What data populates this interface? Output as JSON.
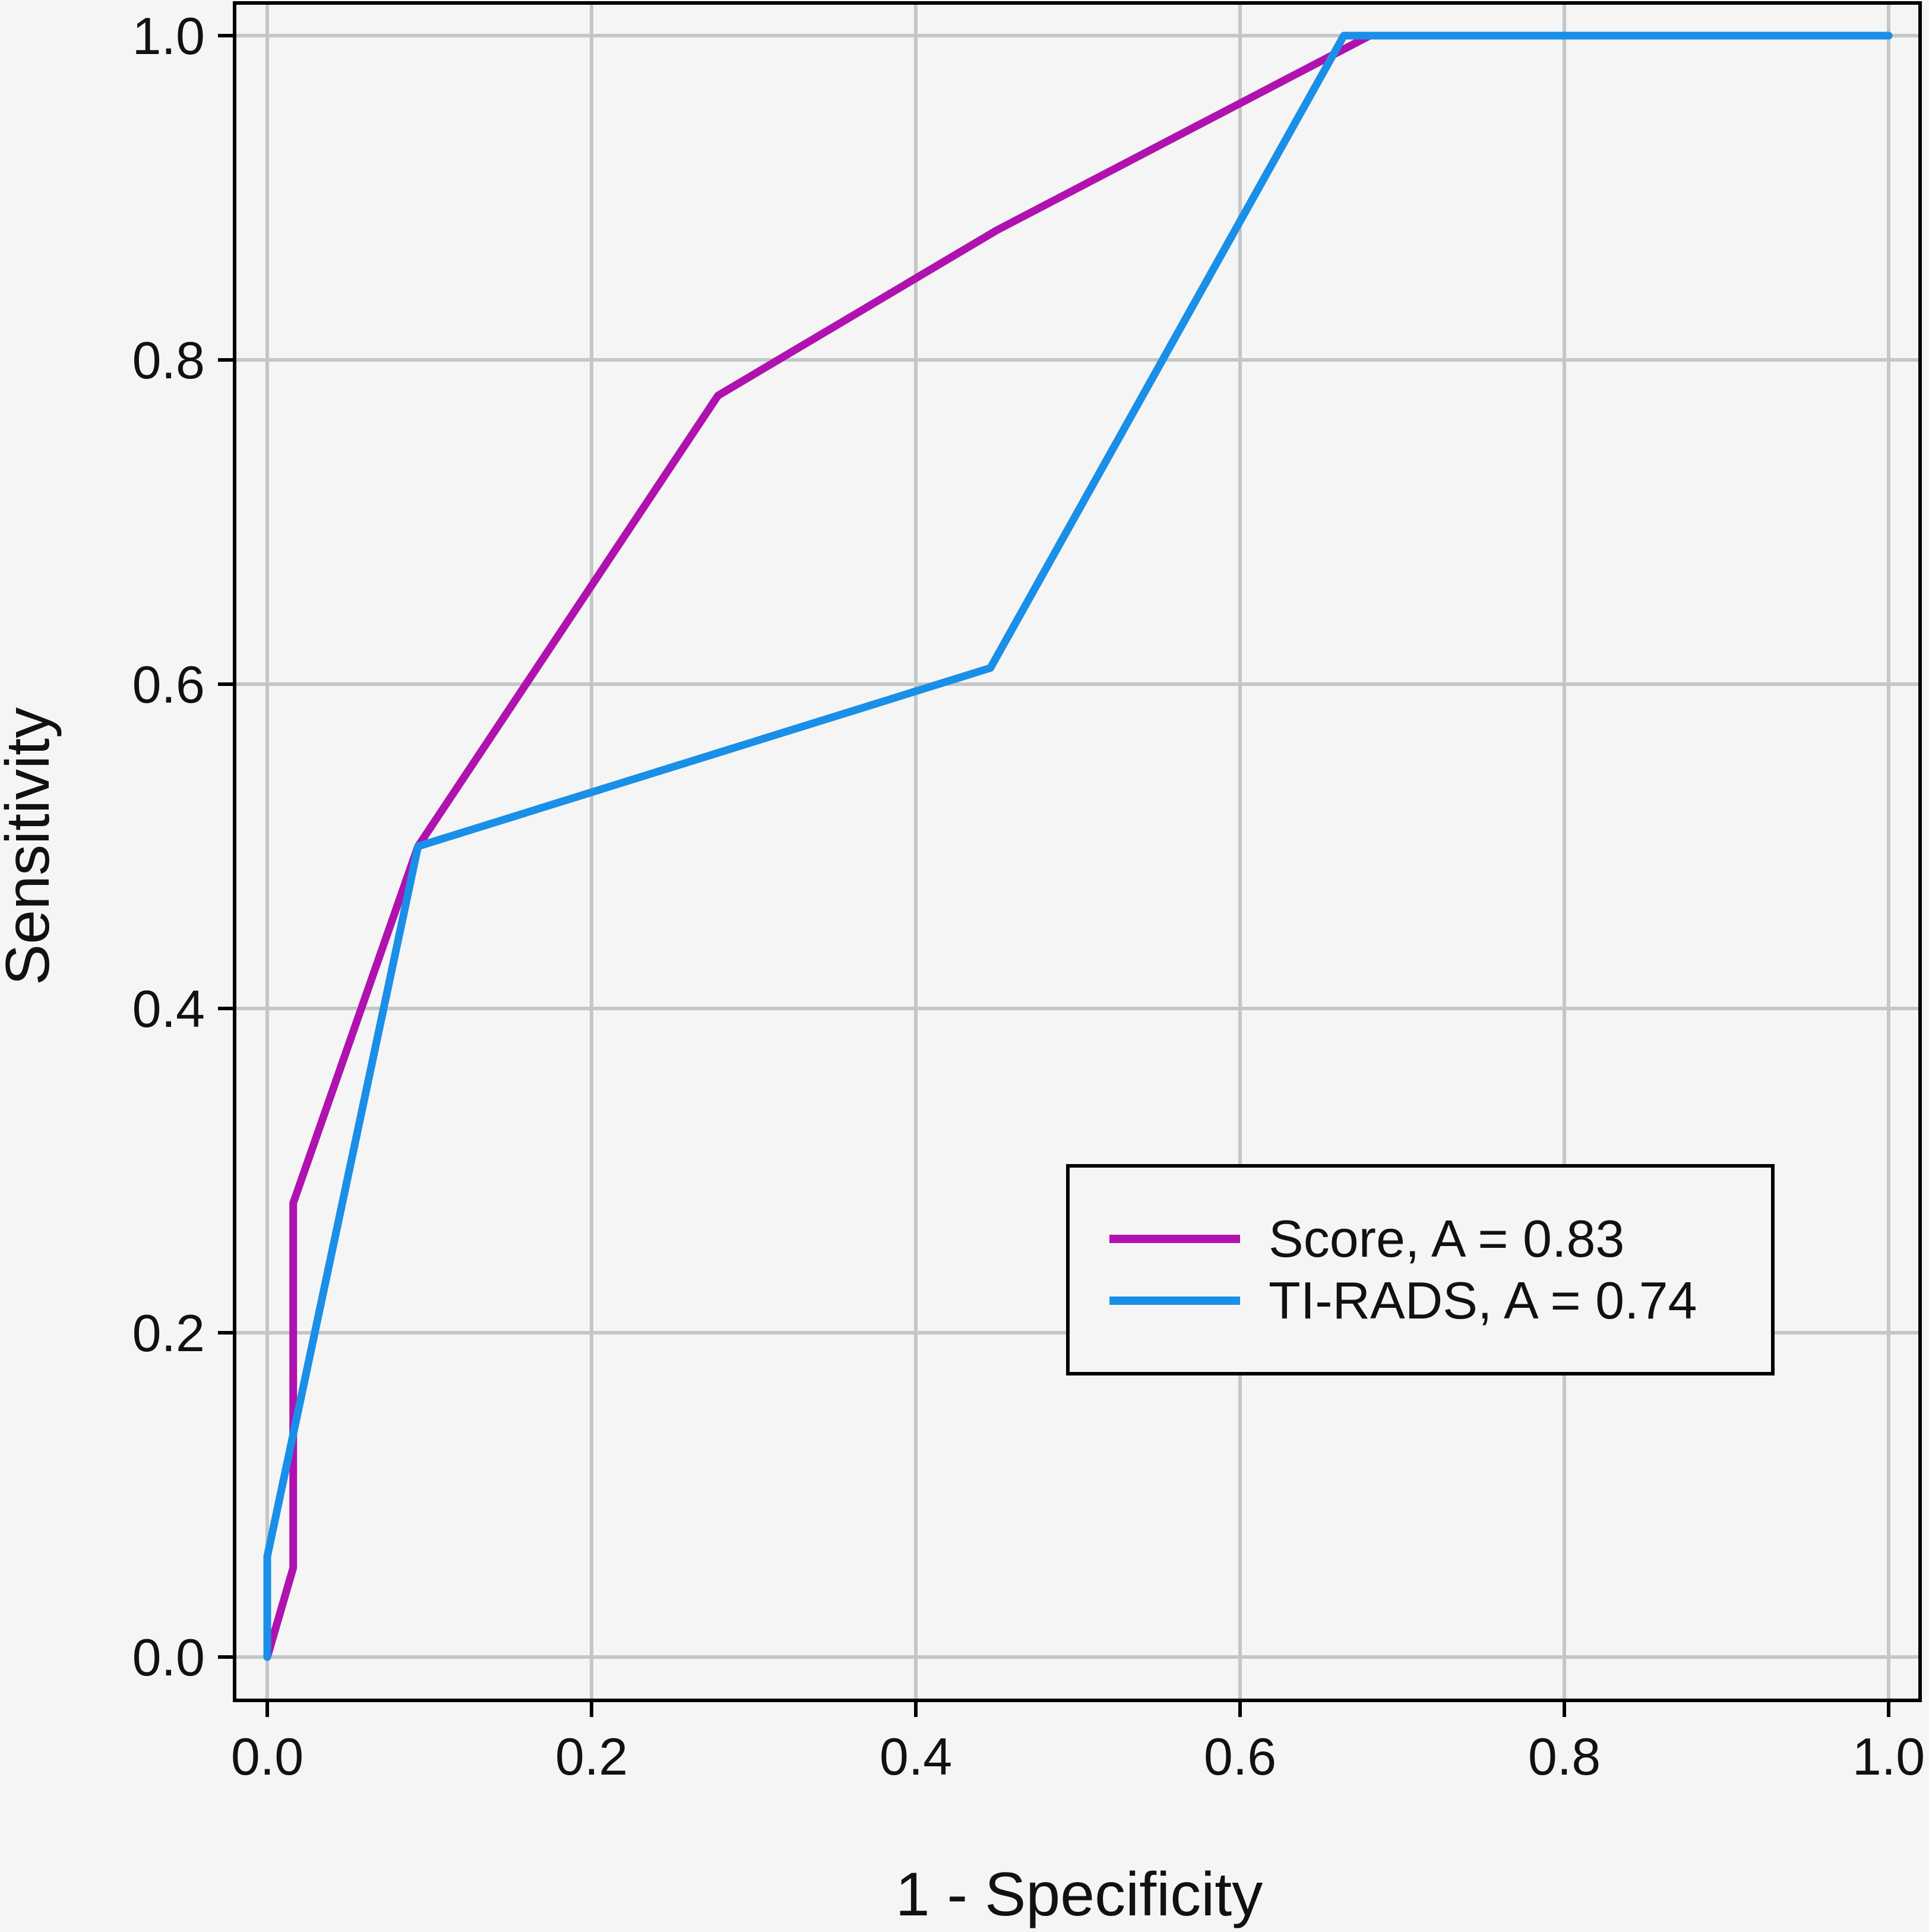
{
  "chart_data": {
    "type": "line",
    "title": "",
    "xlabel": "1 - Specificity",
    "ylabel": "Sensitivity",
    "xlim": [
      0,
      1
    ],
    "ylim": [
      0,
      1
    ],
    "xticks": [
      "0.0",
      "0.2",
      "0.4",
      "0.6",
      "0.8",
      "1.0"
    ],
    "yticks": [
      "0.0",
      "0.2",
      "0.4",
      "0.6",
      "0.8",
      "1.0"
    ],
    "grid": true,
    "legend_position": "bottom-right",
    "series": [
      {
        "name": "Score, A = 0.83",
        "color": "#b012b0",
        "x": [
          0.0,
          0.016,
          0.016,
          0.093,
          0.278,
          0.45,
          0.68,
          1.0
        ],
        "y": [
          0.0,
          0.055,
          0.28,
          0.5,
          0.778,
          0.88,
          1.0,
          1.0
        ]
      },
      {
        "name": "TI-RADS, A = 0.74",
        "color": "#1a8fe8",
        "x": [
          0.0,
          0.0,
          0.093,
          0.446,
          0.664,
          1.0
        ],
        "y": [
          0.0,
          0.062,
          0.5,
          0.61,
          1.0,
          1.0
        ]
      }
    ]
  }
}
